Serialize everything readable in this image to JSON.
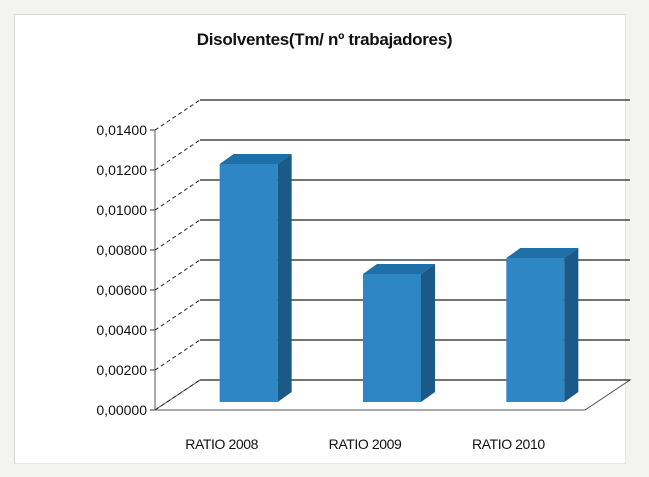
{
  "chart_data": {
    "type": "bar",
    "title": "Disolventes(Tm/ nº trabajadores)",
    "xlabel": "",
    "ylabel": "",
    "categories": [
      "RATIO 2008",
      "RATIO 2009",
      "RATIO 2010"
    ],
    "values": [
      0.0122,
      0.0067,
      0.0075
    ],
    "ylim": [
      0,
      0.014
    ],
    "yticks": [
      "0,00000",
      "0,00200",
      "0,00400",
      "0,00600",
      "0,00800",
      "0,01000",
      "0,01200",
      "0,01400"
    ],
    "grid": true,
    "legend": "none",
    "style": "3d-column",
    "colors": {
      "bar_front": "#2e86c4",
      "bar_top": "#1f6fa8",
      "bar_side": "#1b5a86",
      "grid": "#222222",
      "text": "#111111"
    }
  }
}
